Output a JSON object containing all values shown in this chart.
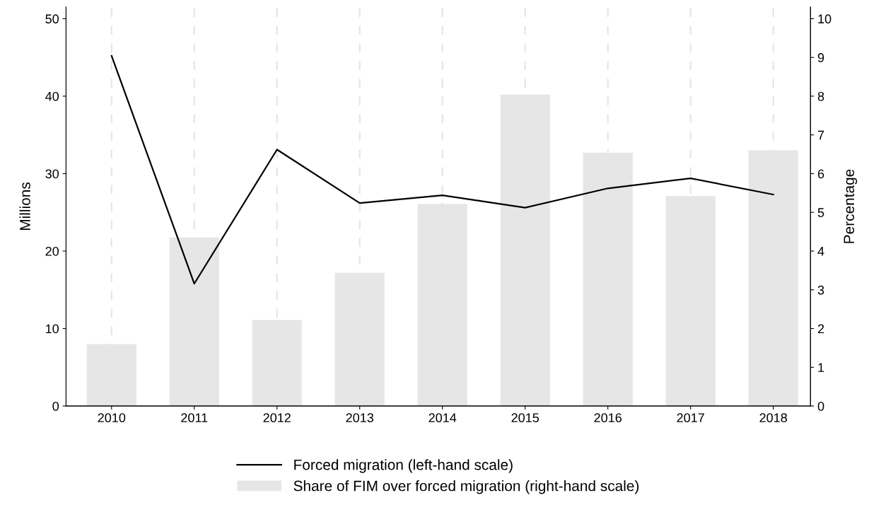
{
  "chart_data": {
    "type": "bar",
    "categories": [
      "2010",
      "2011",
      "2012",
      "2013",
      "2014",
      "2015",
      "2016",
      "2017",
      "2018"
    ],
    "series": [
      {
        "name": "Forced migration (left-hand scale)",
        "type": "line",
        "color": "#000000",
        "values": [
          45.2,
          15.8,
          33.1,
          26.2,
          27.2,
          25.6,
          28.1,
          29.4,
          27.3
        ]
      },
      {
        "name": "Share of FIM over forced migration (right-hand scale)",
        "axis": "y2",
        "color": "#e6e6e6",
        "values": [
          1.6,
          4.35,
          2.22,
          3.44,
          5.22,
          8.04,
          6.54,
          5.42,
          6.6
        ]
      }
    ],
    "ylabel": "Millions",
    "y2label": "Percentage",
    "ylim": [
      0,
      51.5
    ],
    "yticks": [
      0,
      10,
      20,
      30,
      40,
      50
    ],
    "y2lim": [
      0,
      10.3
    ],
    "y2ticks": [
      0,
      1,
      2,
      3,
      4,
      5,
      6,
      7,
      8,
      9,
      10
    ],
    "grid": "x",
    "legend": "bottom",
    "marker": "none",
    "line_style": "solid"
  }
}
